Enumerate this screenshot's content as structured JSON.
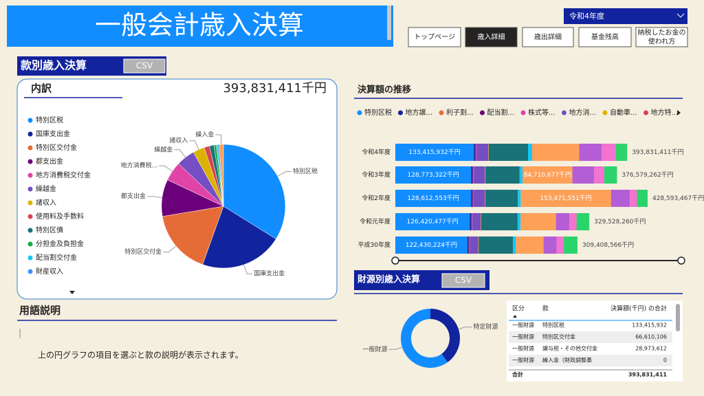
{
  "header": {
    "title": "一般会計歳入決算",
    "year_select": "令和4年度"
  },
  "nav": [
    "トップページ",
    "歳入詳細",
    "歳出詳細",
    "基金残高",
    "納税したお金の",
    "使われ方"
  ],
  "section_breakdown": {
    "title": "款別歳入決算",
    "csv": "CSV",
    "subtitle": "内訳",
    "total": "393,831,411千円"
  },
  "glossary": {
    "title": "用語説明",
    "text": "上の円グラフの項目を選ぶと款の説明が表示されます。"
  },
  "section_trend": {
    "title": "決算額の推移"
  },
  "section_source": {
    "title": "財源別歳入決算",
    "csv": "CSV"
  },
  "chart_data": [
    {
      "type": "pie",
      "categories": [
        "特別区税",
        "国庫支出金",
        "特別区交付金",
        "都支出金",
        "地方消費税交付金",
        "繰越金",
        "諸収入",
        "使用料及手数料",
        "特別区債",
        "分担金及負担金",
        "配当割交付金",
        "財産収入",
        "繰入金"
      ],
      "slice_labels": [
        "特別区税",
        "国庫支出金",
        "特別区交付金",
        "都支出金",
        "地方消費税...",
        "繰越金",
        "諸収入",
        null,
        null,
        null,
        null,
        null,
        "繰入金"
      ],
      "values": [
        133415932,
        85000000,
        66610106,
        38000000,
        20000000,
        19000000,
        12000000,
        5500000,
        4500000,
        2500000,
        1500000,
        1500000,
        4305373
      ],
      "colors": [
        "#118DFF",
        "#12239E",
        "#E66C37",
        "#6B007B",
        "#E044A7",
        "#744EC2",
        "#D9B300",
        "#D64550",
        "#197278",
        "#1AAB40",
        "#15C6F4",
        "#4092FF",
        "#FFA058"
      ]
    },
    {
      "type": "bar",
      "orientation": "horizontal",
      "stacked": true,
      "categories": [
        "令和4年度",
        "令和3年度",
        "令和2年度",
        "令和元年度",
        "平成30年度"
      ],
      "series": [
        {
          "name": "特別区税",
          "color": "#118DFF",
          "values": [
            133415932,
            128773322,
            128612553,
            126420477,
            122430224
          ],
          "value_labels": [
            "133,415,932千円",
            "128,773,322千円",
            "128,612,553千円",
            "126,420,477千円",
            "122,430,224千円"
          ]
        },
        {
          "name": "地方譲...",
          "color": "#12239E",
          "values": [
            2000000,
            2000000,
            2000000,
            2000000,
            2000000
          ]
        },
        {
          "name": "利子割...",
          "color": "#E66C37",
          "values": [
            300000,
            300000,
            300000,
            300000,
            300000
          ]
        },
        {
          "name": "配当割...",
          "color": "#6B007B",
          "values": [
            1000000,
            1000000,
            1000000,
            1000000,
            1000000
          ]
        },
        {
          "name": "株式等...",
          "color": "#E044A7",
          "values": [
            1200000,
            1200000,
            1200000,
            1200000,
            1200000
          ]
        },
        {
          "name": "地方消...",
          "color": "#744EC2",
          "values": [
            20000000,
            19000000,
            19000000,
            14000000,
            14000000
          ]
        },
        {
          "name": "自動車...",
          "color": "#D9B300",
          "values": [
            500000,
            500000,
            500000,
            500000,
            500000
          ]
        },
        {
          "name": "地方特...",
          "color": "#D64550",
          "values": [
            400000,
            400000,
            400000,
            400000,
            400000
          ]
        },
        {
          "name": null,
          "color": "#197278",
          "values": [
            66610106,
            58000000,
            55000000,
            62000000,
            58000000
          ]
        },
        {
          "name": null,
          "color": "#15C6F4",
          "values": [
            7000000,
            5000000,
            5000000,
            5000000,
            5000000
          ]
        },
        {
          "name": null,
          "color": "#FFA058",
          "values": [
            80000000,
            84710677,
            153471551,
            60000000,
            47000000
          ],
          "value_labels": [
            null,
            "84,710,677千円",
            "153,471,551千円",
            null,
            null
          ]
        },
        {
          "name": null,
          "color": "#B45ED6",
          "values": [
            38000000,
            37000000,
            32000000,
            23000000,
            22000000
          ]
        },
        {
          "name": null,
          "color": "#F472D0",
          "values": [
            24000000,
            17000000,
            12000000,
            12000000,
            12000000
          ]
        },
        {
          "name": null,
          "color": "#2BD46B",
          "values": [
            19405373,
            21695263,
            18109363,
            21707783,
            23578342
          ]
        }
      ],
      "totals": [
        393831411,
        376579262,
        428593467,
        329528260,
        309408566
      ],
      "total_labels": [
        "393,831,411千円",
        "376,579,262千円",
        "428,593,467千円",
        "329,528,260千円",
        "309,408,566千円"
      ]
    },
    {
      "type": "donut",
      "categories": [
        "特定財源",
        "一般財源"
      ],
      "values": [
        157831411,
        236000000
      ],
      "colors": [
        "#12239E",
        "#118DFF"
      ]
    }
  ],
  "table": {
    "headers": [
      "区分",
      "款",
      "決算額(千円) の合計"
    ],
    "rows": [
      [
        "一般財源",
        "特別区税",
        "133,415,932"
      ],
      [
        "一般財源",
        "特別区交付金",
        "66,610,106"
      ],
      [
        "一般財源",
        "譲与税・その他交付金",
        "28,973,612"
      ],
      [
        "一般財源",
        "繰入金（財政調整基",
        "0"
      ]
    ],
    "total": [
      "合計",
      "393,831,411"
    ]
  }
}
